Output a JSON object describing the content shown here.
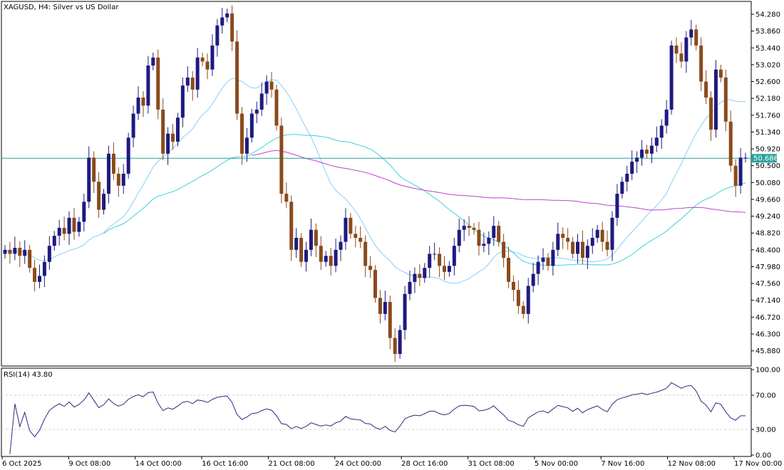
{
  "symbol_title": "XAGUSD, H4:  Silver vs US Dollar",
  "rsi_title": "RSI(14) 43.80",
  "current_price": "50.686",
  "colors": {
    "bull": "#1e1a80",
    "bear": "#8b4a1c",
    "ma_fast": "#87cefa",
    "ma_mid": "#40d0d8",
    "ma_slow": "#c040d0",
    "price_line": "#2aa198",
    "rsi_line": "#2a2a80",
    "axis": "#000000",
    "grid": "#d0d0d0"
  },
  "chart_data": [
    {
      "type": "candlestick",
      "title": "XAGUSD, H4:  Silver vs US Dollar",
      "price_ticks": [
        "54.280",
        "53.860",
        "53.440",
        "53.020",
        "52.600",
        "52.180",
        "51.760",
        "51.340",
        "50.920",
        "50.500",
        "50.080",
        "49.660",
        "49.240",
        "48.820",
        "48.400",
        "47.980",
        "47.560",
        "47.140",
        "46.720",
        "46.300",
        "45.880"
      ],
      "ylim": [
        45.5,
        54.6
      ],
      "x_labels": [
        "6 Oct 2025",
        "9 Oct 08:00",
        "14 Oct 00:00",
        "16 Oct 16:00",
        "21 Oct 08:00",
        "24 Oct 00:00",
        "28 Oct 16:00",
        "31 Oct 08:00",
        "5 Nov 00:00",
        "7 Nov 16:00",
        "12 Nov 08:00",
        "17 Nov 00:00"
      ],
      "closes": [
        48.4,
        48.3,
        48.45,
        48.25,
        48.4,
        47.95,
        47.6,
        47.75,
        48.1,
        48.5,
        48.75,
        48.95,
        48.8,
        49.2,
        48.85,
        49.1,
        49.6,
        50.7,
        50.1,
        49.4,
        49.8,
        50.8,
        50.3,
        50.0,
        50.3,
        51.2,
        51.8,
        52.2,
        52.0,
        53.0,
        53.2,
        51.9,
        50.8,
        51.3,
        51.1,
        51.7,
        52.5,
        52.7,
        52.4,
        53.2,
        53.1,
        52.9,
        53.5,
        54.0,
        54.2,
        54.3,
        53.6,
        51.8,
        50.8,
        51.2,
        51.8,
        51.9,
        52.3,
        52.6,
        52.4,
        51.5,
        49.8,
        49.6,
        48.4,
        48.7,
        48.1,
        48.4,
        48.9,
        48.5,
        48.1,
        48.25,
        48.0,
        48.4,
        48.6,
        49.2,
        48.8,
        48.7,
        48.6,
        48.0,
        47.9,
        47.2,
        46.8,
        47.1,
        46.2,
        45.8,
        46.4,
        47.3,
        47.6,
        47.8,
        47.7,
        47.95,
        48.3,
        48.3,
        48.0,
        47.85,
        48.0,
        48.5,
        48.9,
        49.0,
        48.95,
        48.9,
        48.5,
        48.55,
        48.7,
        49.0,
        48.6,
        48.2,
        47.6,
        47.4,
        47.0,
        46.8,
        47.5,
        47.8,
        48.1,
        48.2,
        48.0,
        48.4,
        48.8,
        48.7,
        48.6,
        48.3,
        48.6,
        48.2,
        48.5,
        48.7,
        48.9,
        48.6,
        48.4,
        49.2,
        49.8,
        50.1,
        50.3,
        50.6,
        50.7,
        50.9,
        50.8,
        51.0,
        51.2,
        51.5,
        51.9,
        53.5,
        53.3,
        53.1,
        53.7,
        53.9,
        53.5,
        52.6,
        52.2,
        51.4,
        52.9,
        52.7,
        51.6,
        50.5,
        50.0,
        50.7,
        50.7
      ]
    },
    {
      "type": "line",
      "title": "RSI(14) 43.80",
      "ylim": [
        0,
        100
      ],
      "y_ticks": [
        "100.00",
        "70.00",
        "30.00",
        "0.00"
      ],
      "levels": [
        70,
        30
      ]
    }
  ]
}
